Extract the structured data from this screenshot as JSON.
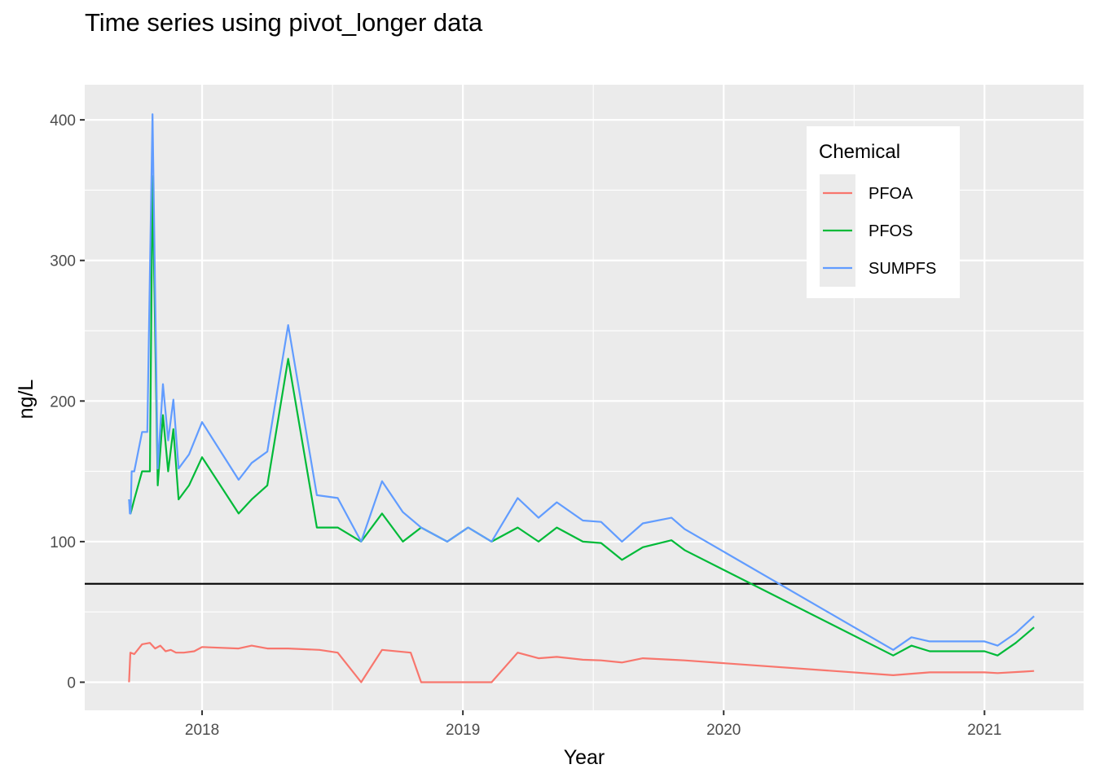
{
  "chart_data": {
    "type": "line",
    "title": "Time series using pivot_longer data",
    "xlabel": "Year",
    "ylabel": "ng/L",
    "xlim": [
      2017.55,
      2021.38
    ],
    "ylim": [
      -20,
      425
    ],
    "x_ticks": [
      2018,
      2019,
      2020,
      2021
    ],
    "x_tick_labels": [
      "2018",
      "2019",
      "2020",
      "2021"
    ],
    "y_ticks": [
      0,
      100,
      200,
      300,
      400
    ],
    "y_tick_labels": [
      "0",
      "100",
      "200",
      "300",
      "400"
    ],
    "grid": true,
    "reference_line": {
      "y": 70,
      "color": "#000000"
    },
    "legend": {
      "title": "Chemical",
      "position": "top-right"
    },
    "series": [
      {
        "name": "PFOA",
        "color": "#F8766D",
        "x": [
          2017.72,
          2017.725,
          2017.74,
          2017.77,
          2017.8,
          2017.82,
          2017.84,
          2017.86,
          2017.88,
          2017.9,
          2017.93,
          2017.97,
          2018.0,
          2018.14,
          2018.19,
          2018.25,
          2018.33,
          2018.45,
          2018.52,
          2018.61,
          2018.69,
          2018.8,
          2018.84,
          2019.11,
          2019.21,
          2019.29,
          2019.36,
          2019.46,
          2019.53,
          2019.61,
          2019.69,
          2019.8,
          2019.85,
          2020.65,
          2020.79,
          2021.0,
          2021.05,
          2021.15,
          2021.19
        ],
        "values": [
          0,
          21,
          20,
          27,
          28,
          24,
          26,
          22,
          23,
          21,
          21,
          22,
          25,
          24,
          26,
          24,
          24,
          23,
          21,
          0,
          23,
          21,
          0,
          0,
          21,
          17,
          18,
          16,
          15.5,
          14,
          17,
          16,
          15.5,
          5,
          7,
          7,
          6.5,
          7.5,
          8
        ]
      },
      {
        "name": "PFOS",
        "color": "#00BA38",
        "x": [
          2017.72,
          2017.723,
          2017.726,
          2017.74,
          2017.77,
          2017.8,
          2017.81,
          2017.83,
          2017.85,
          2017.87,
          2017.89,
          2017.91,
          2017.95,
          2018.0,
          2018.14,
          2018.19,
          2018.25,
          2018.33,
          2018.44,
          2018.52,
          2018.61,
          2018.69,
          2018.77,
          2018.84,
          2018.94,
          2019.02,
          2019.11,
          2019.21,
          2019.29,
          2019.36,
          2019.46,
          2019.53,
          2019.61,
          2019.69,
          2019.8,
          2019.85,
          2020.65,
          2020.72,
          2020.79,
          2021.0,
          2021.05,
          2021.12,
          2021.19
        ],
        "values": [
          130,
          125,
          120,
          130,
          150,
          150,
          360,
          140,
          190,
          150,
          180,
          130,
          140,
          160,
          120,
          130,
          140,
          230,
          110,
          110,
          100,
          120,
          100,
          110,
          100,
          110,
          100,
          110,
          100,
          110,
          100,
          99,
          87,
          96,
          101,
          94,
          19,
          26,
          22,
          22,
          19,
          28,
          39
        ]
      },
      {
        "name": "SUMPFS",
        "color": "#619CFF",
        "x": [
          2017.72,
          2017.723,
          2017.726,
          2017.73,
          2017.74,
          2017.77,
          2017.79,
          2017.81,
          2017.83,
          2017.85,
          2017.87,
          2017.89,
          2017.91,
          2017.95,
          2018.0,
          2018.14,
          2018.19,
          2018.25,
          2018.33,
          2018.44,
          2018.52,
          2018.61,
          2018.69,
          2018.77,
          2018.84,
          2018.94,
          2019.02,
          2019.11,
          2019.21,
          2019.29,
          2019.36,
          2019.46,
          2019.53,
          2019.61,
          2019.69,
          2019.8,
          2019.85,
          2020.65,
          2020.72,
          2020.79,
          2021.0,
          2021.05,
          2021.12,
          2021.19
        ],
        "values": [
          130,
          120,
          120,
          150,
          150,
          178,
          178,
          404,
          152,
          212,
          172,
          201,
          152,
          162,
          185,
          144,
          156,
          164,
          254,
          133,
          131,
          100,
          143,
          121,
          110,
          100,
          110,
          100,
          131,
          117,
          128,
          115,
          114,
          100,
          113,
          117,
          109,
          23,
          32,
          29,
          29,
          26,
          35,
          47
        ]
      }
    ]
  }
}
